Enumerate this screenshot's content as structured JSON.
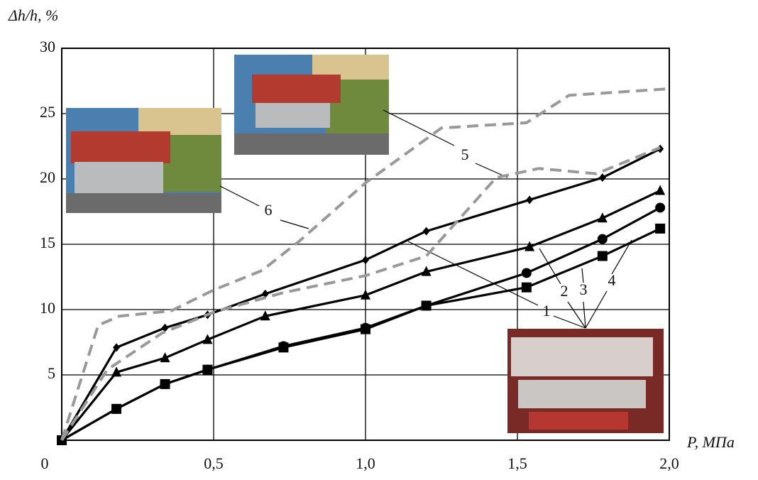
{
  "chart_data": {
    "type": "line",
    "y_label": "Δh/h, %",
    "x_label": "P, МПа",
    "xlim": [
      0,
      2.0
    ],
    "ylim": [
      0,
      30
    ],
    "xticks": [
      0,
      {
        "value": 0.5,
        "label": "0,5"
      },
      {
        "value": 1.0,
        "label": "1,0"
      },
      {
        "value": 1.5,
        "label": "1,5"
      },
      {
        "value": 2.0,
        "label": "2,0"
      }
    ],
    "yticks": [
      5,
      10,
      15,
      20,
      25,
      30
    ],
    "grid": true,
    "series": [
      {
        "name": "1",
        "color": "#000000",
        "marker": "diamond",
        "dash": false,
        "x": [
          0,
          0.18,
          0.34,
          0.48,
          0.67,
          1.0,
          1.2,
          1.54,
          1.78,
          1.97
        ],
        "values": [
          0,
          7.1,
          8.6,
          9.6,
          11.2,
          13.8,
          16.0,
          18.4,
          20.1,
          22.3
        ]
      },
      {
        "name": "2",
        "color": "#000000",
        "marker": "triangle",
        "dash": false,
        "x": [
          0,
          0.18,
          0.34,
          0.48,
          0.67,
          1.0,
          1.2,
          1.54,
          1.78,
          1.97
        ],
        "values": [
          0,
          5.2,
          6.3,
          7.7,
          9.5,
          11.1,
          12.9,
          14.8,
          17.0,
          19.1
        ]
      },
      {
        "name": "3",
        "color": "#000000",
        "marker": "circle",
        "dash": false,
        "x": [
          0,
          0.18,
          0.34,
          0.48,
          0.73,
          1.0,
          1.2,
          1.53,
          1.78,
          1.97
        ],
        "values": [
          0,
          2.4,
          4.3,
          5.4,
          7.2,
          8.6,
          10.3,
          12.8,
          15.4,
          17.8
        ]
      },
      {
        "name": "4",
        "color": "#000000",
        "marker": "square",
        "dash": false,
        "x": [
          0,
          0.18,
          0.34,
          0.48,
          0.73,
          1.0,
          1.2,
          1.53,
          1.78,
          1.97
        ],
        "values": [
          0,
          2.4,
          4.3,
          5.4,
          7.1,
          8.5,
          10.3,
          11.7,
          14.1,
          16.2
        ]
      },
      {
        "name": "5",
        "color": "#999999",
        "marker": "none",
        "dash": true,
        "x": [
          0,
          0.15,
          0.33,
          0.5,
          0.73,
          1.0,
          1.2,
          1.43,
          1.57,
          1.76,
          1.97
        ],
        "values": [
          0,
          5.4,
          8.2,
          9.8,
          11.3,
          12.6,
          14.1,
          20.1,
          20.8,
          20.4,
          22.4
        ]
      },
      {
        "name": "6",
        "color": "#999999",
        "marker": "none",
        "dash": true,
        "x": [
          0,
          0.12,
          0.19,
          0.36,
          0.5,
          0.66,
          0.78,
          1.0,
          1.25,
          1.53,
          1.67,
          2.0
        ],
        "values": [
          0,
          8.8,
          9.5,
          9.9,
          11.5,
          13.0,
          15.2,
          19.7,
          23.9,
          24.3,
          26.4,
          26.9
        ]
      }
    ]
  }
}
